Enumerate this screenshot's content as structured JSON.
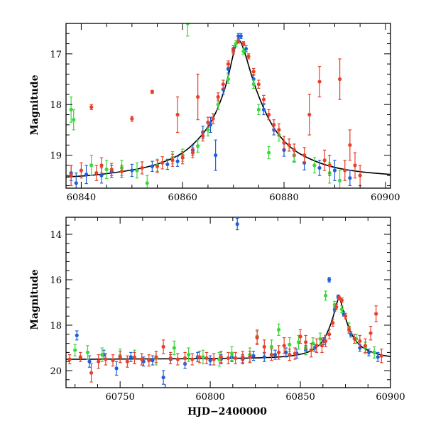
{
  "chart_data": [
    {
      "type": "scatter",
      "title": "",
      "xlabel": "",
      "ylabel": "Magnitude",
      "xlim": [
        60837,
        60901
      ],
      "ylim": [
        19.65,
        16.4
      ],
      "y_inverted": true,
      "xticks": [
        60840,
        60860,
        60880,
        60900
      ],
      "yticks": [
        17,
        18,
        19
      ],
      "grid": false,
      "legend": "none",
      "model_curve": {
        "color": "#000000",
        "x": [
          60837,
          60842,
          60847,
          60852,
          60856,
          60860,
          60863,
          60865,
          60866.5,
          60868,
          60869,
          60870,
          60870.5,
          60871,
          60871.5,
          60872.5,
          60873.5,
          60875,
          60877,
          60879,
          60882,
          60886,
          60890,
          60895,
          60901
        ],
        "y": [
          19.43,
          19.4,
          19.34,
          19.26,
          19.15,
          18.97,
          18.7,
          18.45,
          18.18,
          17.8,
          17.45,
          17.0,
          16.82,
          16.72,
          16.76,
          17.05,
          17.4,
          17.85,
          18.3,
          18.62,
          18.92,
          19.12,
          19.25,
          19.33,
          19.38
        ]
      },
      "series": [
        {
          "color": "#1f5fd6",
          "x": [
            60838,
            60839,
            60841,
            60844,
            60846,
            60850,
            60854,
            60857,
            60859,
            60862,
            60864,
            60865.5,
            60866.5,
            60868,
            60869,
            60870,
            60871,
            60871.5,
            60872.5,
            60874,
            60876,
            60878,
            60880,
            60882,
            60884,
            60887,
            60890,
            60893
          ],
          "y": [
            19.35,
            19.55,
            19.38,
            19.4,
            19.32,
            19.3,
            19.22,
            19.18,
            19.12,
            18.9,
            18.55,
            18.4,
            19.0,
            17.7,
            17.3,
            16.9,
            16.65,
            16.65,
            16.9,
            17.5,
            18.1,
            18.5,
            18.9,
            19.0,
            19.15,
            19.25,
            19.3,
            19.45
          ],
          "err": [
            0.15,
            0.2,
            0.18,
            0.15,
            0.12,
            0.12,
            0.1,
            0.1,
            0.1,
            0.1,
            0.12,
            0.15,
            0.3,
            0.1,
            0.08,
            0.06,
            0.05,
            0.05,
            0.06,
            0.08,
            0.1,
            0.1,
            0.12,
            0.12,
            0.14,
            0.15,
            0.2,
            0.15
          ]
        },
        {
          "color": "#3ad83a",
          "x": [
            60838,
            60838.5,
            60842,
            60845,
            60848,
            60851,
            60853,
            60855,
            60858,
            60860,
            60861,
            60863,
            60865,
            60867,
            60869,
            60870.5,
            60872,
            60874,
            60875,
            60877,
            60879,
            60882,
            60886,
            60889,
            60891
          ],
          "y": [
            18.1,
            18.3,
            19.2,
            19.28,
            19.25,
            19.3,
            19.55,
            19.2,
            19.05,
            19.0,
            16.4,
            18.82,
            18.5,
            18.0,
            17.5,
            16.8,
            16.95,
            17.6,
            18.1,
            18.95,
            18.6,
            19.0,
            19.2,
            19.35,
            19.5
          ],
          "err": [
            0.25,
            0.2,
            0.2,
            0.18,
            0.15,
            0.15,
            0.15,
            0.12,
            0.12,
            0.12,
            0.25,
            0.12,
            0.12,
            0.1,
            0.08,
            0.06,
            0.06,
            0.08,
            0.1,
            0.12,
            0.12,
            0.14,
            0.15,
            0.2,
            0.2
          ]
        },
        {
          "color": "#e8402a",
          "x": [
            60838,
            60840,
            60842,
            60843,
            60844,
            60846,
            60848,
            60850,
            60852,
            60854,
            60855,
            60856,
            60858,
            60859,
            60860,
            60862,
            60863,
            60864,
            60865,
            60866,
            60867,
            60868,
            60869,
            60870,
            60871,
            60872,
            60873,
            60874,
            60875,
            60876,
            60877,
            60878,
            60879,
            60880,
            60881,
            60882,
            60884,
            60885,
            60887,
            60888,
            60889,
            60891,
            60892,
            60893,
            60894,
            60895
          ],
          "y": [
            19.4,
            19.3,
            18.05,
            19.35,
            19.2,
            19.28,
            19.32,
            18.28,
            19.25,
            17.75,
            19.22,
            19.15,
            19.1,
            18.2,
            19.05,
            18.95,
            17.85,
            18.62,
            18.35,
            18.28,
            17.85,
            17.6,
            17.2,
            16.95,
            16.75,
            16.8,
            17.05,
            17.35,
            17.6,
            17.9,
            18.2,
            18.4,
            18.5,
            18.75,
            18.8,
            18.9,
            19.0,
            18.2,
            17.55,
            19.1,
            19.2,
            17.5,
            19.3,
            18.8,
            19.2,
            19.4
          ],
          "err": [
            0.2,
            0.15,
            0.05,
            0.15,
            0.15,
            0.12,
            0.12,
            0.05,
            0.12,
            0.03,
            0.12,
            0.12,
            0.12,
            0.35,
            0.12,
            0.1,
            0.45,
            0.1,
            0.1,
            0.1,
            0.08,
            0.08,
            0.06,
            0.05,
            0.04,
            0.04,
            0.05,
            0.06,
            0.08,
            0.08,
            0.1,
            0.1,
            0.12,
            0.12,
            0.12,
            0.12,
            0.15,
            0.4,
            0.3,
            0.2,
            0.2,
            0.4,
            0.2,
            0.3,
            0.25,
            0.2
          ]
        }
      ]
    },
    {
      "type": "scatter",
      "title": "",
      "xlabel": "HJD−2400000",
      "ylabel": "Magnitude",
      "xlim": [
        60720,
        60900
      ],
      "ylim": [
        20.75,
        13.25
      ],
      "y_inverted": true,
      "xticks": [
        60750,
        60800,
        60850,
        60900
      ],
      "yticks": [
        14,
        16,
        18,
        20
      ],
      "grid": false,
      "legend": "none",
      "model_curve": {
        "color": "#000000",
        "x": [
          60720,
          60760,
          60800,
          60820,
          60835,
          60845,
          60852,
          60857,
          60861,
          60864,
          60867,
          60869,
          60870.5,
          60871.5,
          60873,
          60875,
          60878,
          60882,
          60888,
          60895,
          60900
        ],
        "y": [
          19.5,
          19.49,
          19.47,
          19.45,
          19.42,
          19.36,
          19.25,
          19.1,
          18.85,
          18.5,
          17.95,
          17.4,
          16.95,
          16.75,
          17.1,
          17.7,
          18.35,
          18.85,
          19.15,
          19.32,
          19.38
        ]
      },
      "series": [
        {
          "color": "#1f5fd6",
          "x": [
            60726,
            60733,
            60741,
            60748,
            60756,
            60763,
            60768,
            60774,
            60778,
            60786,
            60793,
            60800,
            60806,
            60812,
            60815,
            60818,
            60824,
            60830,
            60836,
            60842,
            60848,
            60853,
            60858,
            60863,
            60866,
            60869,
            60871,
            60874,
            60878,
            60883,
            60888,
            60893
          ],
          "y": [
            18.45,
            19.6,
            19.3,
            19.9,
            19.4,
            19.6,
            19.55,
            20.3,
            19.5,
            19.7,
            19.4,
            19.55,
            19.5,
            19.4,
            13.55,
            19.5,
            19.35,
            19.4,
            19.3,
            19.2,
            19.25,
            19.1,
            19.0,
            18.7,
            16.0,
            17.3,
            16.75,
            17.5,
            18.4,
            19.0,
            19.2,
            19.4
          ],
          "err": [
            0.2,
            0.25,
            0.2,
            0.3,
            0.2,
            0.2,
            0.2,
            0.3,
            0.2,
            0.2,
            0.2,
            0.2,
            0.2,
            0.2,
            0.25,
            0.2,
            0.2,
            0.2,
            0.2,
            0.2,
            0.2,
            0.2,
            0.15,
            0.15,
            0.1,
            0.1,
            0.08,
            0.1,
            0.12,
            0.15,
            0.15,
            0.2
          ]
        },
        {
          "color": "#3ad83a",
          "x": [
            60725,
            60732,
            60740,
            60750,
            60758,
            60770,
            60780,
            60788,
            60796,
            60805,
            60812,
            60822,
            60826,
            60834,
            60838,
            60844,
            60849,
            60853,
            60857,
            60861,
            60864,
            60869,
            60873,
            60877,
            60881,
            60886,
            60891
          ],
          "y": [
            19.1,
            19.2,
            19.3,
            19.35,
            19.4,
            19.45,
            19.0,
            19.3,
            19.4,
            19.5,
            19.25,
            19.3,
            18.5,
            18.95,
            18.2,
            18.85,
            18.75,
            19.0,
            18.8,
            18.6,
            16.7,
            17.1,
            17.3,
            18.1,
            18.6,
            19.0,
            19.2
          ],
          "err": [
            0.25,
            0.3,
            0.3,
            0.3,
            0.3,
            0.3,
            0.3,
            0.3,
            0.3,
            0.3,
            0.3,
            0.3,
            0.3,
            0.3,
            0.25,
            0.3,
            0.3,
            0.3,
            0.25,
            0.25,
            0.2,
            0.15,
            0.15,
            0.2,
            0.2,
            0.25,
            0.25
          ]
        },
        {
          "color": "#e8402a",
          "x": [
            60722,
            60728,
            60734,
            60738,
            60742,
            60746,
            60750,
            60754,
            60758,
            60762,
            60766,
            60770,
            60774,
            60778,
            60782,
            60786,
            60790,
            60794,
            60798,
            60802,
            60806,
            60810,
            60814,
            60818,
            60822,
            60826,
            60830,
            60834,
            60838,
            60841,
            60844,
            60847,
            60850,
            60853,
            60856,
            60859,
            60862,
            60864,
            60866,
            60868,
            60870,
            60871.5,
            60873,
            60875,
            60877,
            60880,
            60883,
            60886,
            60889,
            60892,
            60895
          ],
          "y": [
            19.5,
            19.4,
            20.1,
            19.6,
            19.5,
            19.55,
            19.4,
            19.6,
            19.45,
            19.5,
            19.55,
            19.4,
            18.95,
            19.45,
            19.5,
            19.45,
            19.5,
            19.4,
            19.45,
            19.5,
            19.4,
            19.45,
            19.45,
            19.4,
            19.4,
            18.55,
            18.95,
            19.3,
            19.2,
            18.9,
            19.3,
            19.25,
            18.5,
            18.75,
            19.1,
            18.9,
            18.9,
            18.7,
            18.4,
            17.9,
            17.2,
            16.8,
            16.9,
            17.6,
            18.2,
            18.6,
            18.7,
            18.9,
            18.35,
            17.5,
            19.35
          ],
          "err": [
            0.2,
            0.2,
            0.4,
            0.3,
            0.25,
            0.25,
            0.25,
            0.25,
            0.25,
            0.25,
            0.25,
            0.25,
            0.3,
            0.25,
            0.25,
            0.25,
            0.25,
            0.25,
            0.25,
            0.25,
            0.25,
            0.25,
            0.25,
            0.25,
            0.25,
            0.3,
            0.3,
            0.25,
            0.3,
            0.35,
            0.25,
            0.25,
            0.3,
            0.3,
            0.3,
            0.3,
            0.3,
            0.25,
            0.2,
            0.15,
            0.12,
            0.08,
            0.1,
            0.12,
            0.15,
            0.2,
            0.25,
            0.3,
            0.3,
            0.35,
            0.3
          ]
        }
      ]
    }
  ]
}
